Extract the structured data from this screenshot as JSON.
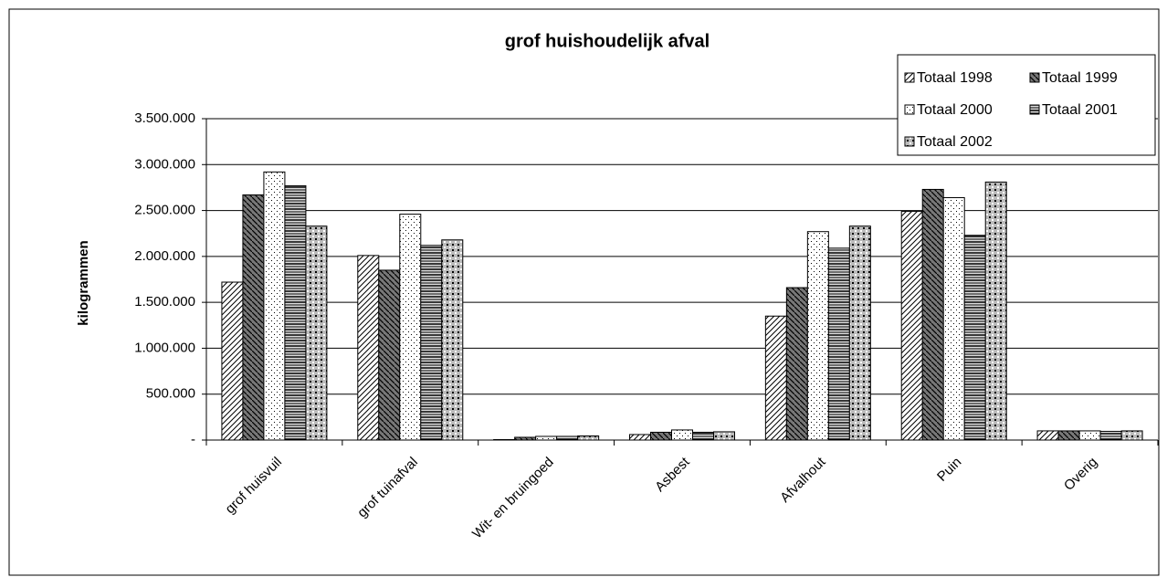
{
  "chart_data": {
    "type": "bar",
    "title": "grof huishoudelijk afval",
    "y_label": "kilogrammen",
    "categories": [
      "grof huisvuil",
      "grof tuinafval",
      "Wit- en bruingoed",
      "Asbest",
      "Afvalhout",
      "Puin",
      "Overig"
    ],
    "series": [
      {
        "name": "Totaal 1998",
        "color": "#000000",
        "pattern": "diagonal",
        "values": [
          1720000,
          2010000,
          5000,
          60000,
          1350000,
          2490000,
          100000
        ]
      },
      {
        "name": "Totaal 1999",
        "color": "#000000",
        "pattern": "dense",
        "values": [
          2670000,
          1850000,
          30000,
          85000,
          1660000,
          2730000,
          100000
        ]
      },
      {
        "name": "Totaal 2000",
        "color": "#000000",
        "pattern": "dots",
        "values": [
          2920000,
          2460000,
          40000,
          110000,
          2270000,
          2640000,
          100000
        ]
      },
      {
        "name": "Totaal 2001",
        "color": "#000000",
        "pattern": "horizontal",
        "values": [
          2770000,
          2120000,
          40000,
          85000,
          2090000,
          2230000,
          95000
        ]
      },
      {
        "name": "Totaal 2002",
        "color": "#000000",
        "pattern": "grid",
        "values": [
          2330000,
          2180000,
          45000,
          90000,
          2330000,
          2810000,
          100000
        ]
      }
    ],
    "ylim": [
      0,
      3500000
    ],
    "yticks": [
      {
        "value": 0,
        "label": "-"
      },
      {
        "value": 500000,
        "label": "500.000"
      },
      {
        "value": 1000000,
        "label": "1.000.000"
      },
      {
        "value": 1500000,
        "label": "1.500.000"
      },
      {
        "value": 2000000,
        "label": "2.000.000"
      },
      {
        "value": 2500000,
        "label": "2.500.000"
      },
      {
        "value": 3000000,
        "label": "3.000.000"
      },
      {
        "value": 3500000,
        "label": "3.500.000"
      }
    ],
    "grid": true,
    "legend": "top-right"
  }
}
